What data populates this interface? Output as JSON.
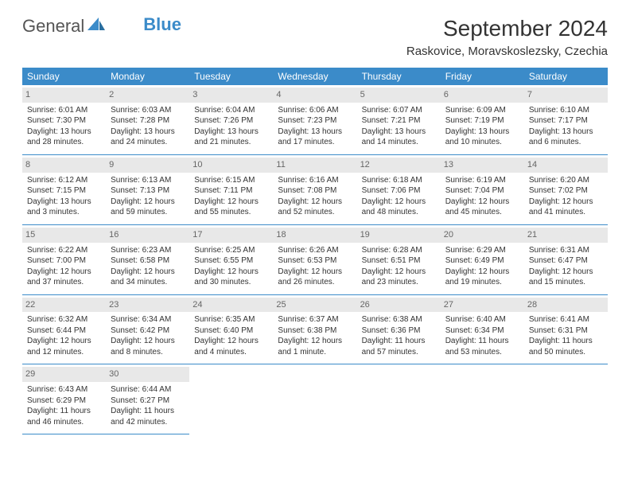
{
  "logo": {
    "text1": "General",
    "text2": "Blue"
  },
  "title": "September 2024",
  "location": "Raskovice, Moravskoslezsky, Czechia",
  "colors": {
    "header_bg": "#3b8bc9",
    "header_text": "#ffffff",
    "daynum_bg": "#e8e8e8",
    "daynum_text": "#666666",
    "row_divider": "#3b8bc9",
    "page_bg": "#ffffff",
    "body_text": "#333333"
  },
  "fonts": {
    "title_pt": 28,
    "location_pt": 15,
    "header_pt": 12,
    "cell_pt": 10,
    "daynum_pt": 11
  },
  "weekdays": [
    "Sunday",
    "Monday",
    "Tuesday",
    "Wednesday",
    "Thursday",
    "Friday",
    "Saturday"
  ],
  "days": [
    {
      "n": "1",
      "sr": "6:01 AM",
      "ss": "7:30 PM",
      "dl": "13 hours and 28 minutes."
    },
    {
      "n": "2",
      "sr": "6:03 AM",
      "ss": "7:28 PM",
      "dl": "13 hours and 24 minutes."
    },
    {
      "n": "3",
      "sr": "6:04 AM",
      "ss": "7:26 PM",
      "dl": "13 hours and 21 minutes."
    },
    {
      "n": "4",
      "sr": "6:06 AM",
      "ss": "7:23 PM",
      "dl": "13 hours and 17 minutes."
    },
    {
      "n": "5",
      "sr": "6:07 AM",
      "ss": "7:21 PM",
      "dl": "13 hours and 14 minutes."
    },
    {
      "n": "6",
      "sr": "6:09 AM",
      "ss": "7:19 PM",
      "dl": "13 hours and 10 minutes."
    },
    {
      "n": "7",
      "sr": "6:10 AM",
      "ss": "7:17 PM",
      "dl": "13 hours and 6 minutes."
    },
    {
      "n": "8",
      "sr": "6:12 AM",
      "ss": "7:15 PM",
      "dl": "13 hours and 3 minutes."
    },
    {
      "n": "9",
      "sr": "6:13 AM",
      "ss": "7:13 PM",
      "dl": "12 hours and 59 minutes."
    },
    {
      "n": "10",
      "sr": "6:15 AM",
      "ss": "7:11 PM",
      "dl": "12 hours and 55 minutes."
    },
    {
      "n": "11",
      "sr": "6:16 AM",
      "ss": "7:08 PM",
      "dl": "12 hours and 52 minutes."
    },
    {
      "n": "12",
      "sr": "6:18 AM",
      "ss": "7:06 PM",
      "dl": "12 hours and 48 minutes."
    },
    {
      "n": "13",
      "sr": "6:19 AM",
      "ss": "7:04 PM",
      "dl": "12 hours and 45 minutes."
    },
    {
      "n": "14",
      "sr": "6:20 AM",
      "ss": "7:02 PM",
      "dl": "12 hours and 41 minutes."
    },
    {
      "n": "15",
      "sr": "6:22 AM",
      "ss": "7:00 PM",
      "dl": "12 hours and 37 minutes."
    },
    {
      "n": "16",
      "sr": "6:23 AM",
      "ss": "6:58 PM",
      "dl": "12 hours and 34 minutes."
    },
    {
      "n": "17",
      "sr": "6:25 AM",
      "ss": "6:55 PM",
      "dl": "12 hours and 30 minutes."
    },
    {
      "n": "18",
      "sr": "6:26 AM",
      "ss": "6:53 PM",
      "dl": "12 hours and 26 minutes."
    },
    {
      "n": "19",
      "sr": "6:28 AM",
      "ss": "6:51 PM",
      "dl": "12 hours and 23 minutes."
    },
    {
      "n": "20",
      "sr": "6:29 AM",
      "ss": "6:49 PM",
      "dl": "12 hours and 19 minutes."
    },
    {
      "n": "21",
      "sr": "6:31 AM",
      "ss": "6:47 PM",
      "dl": "12 hours and 15 minutes."
    },
    {
      "n": "22",
      "sr": "6:32 AM",
      "ss": "6:44 PM",
      "dl": "12 hours and 12 minutes."
    },
    {
      "n": "23",
      "sr": "6:34 AM",
      "ss": "6:42 PM",
      "dl": "12 hours and 8 minutes."
    },
    {
      "n": "24",
      "sr": "6:35 AM",
      "ss": "6:40 PM",
      "dl": "12 hours and 4 minutes."
    },
    {
      "n": "25",
      "sr": "6:37 AM",
      "ss": "6:38 PM",
      "dl": "12 hours and 1 minute."
    },
    {
      "n": "26",
      "sr": "6:38 AM",
      "ss": "6:36 PM",
      "dl": "11 hours and 57 minutes."
    },
    {
      "n": "27",
      "sr": "6:40 AM",
      "ss": "6:34 PM",
      "dl": "11 hours and 53 minutes."
    },
    {
      "n": "28",
      "sr": "6:41 AM",
      "ss": "6:31 PM",
      "dl": "11 hours and 50 minutes."
    },
    {
      "n": "29",
      "sr": "6:43 AM",
      "ss": "6:29 PM",
      "dl": "11 hours and 46 minutes."
    },
    {
      "n": "30",
      "sr": "6:44 AM",
      "ss": "6:27 PM",
      "dl": "11 hours and 42 minutes."
    }
  ],
  "labels": {
    "sunrise": "Sunrise:",
    "sunset": "Sunset:",
    "daylight": "Daylight:"
  },
  "layout": {
    "columns": 7,
    "rows": 5,
    "start_weekday": 0
  }
}
